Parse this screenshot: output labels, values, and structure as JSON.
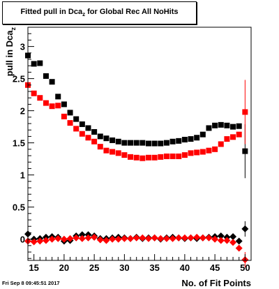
{
  "title": {
    "prefix": "Fitted pull in Dca",
    "sub": "z",
    "suffix": " for Global Rec All NoHits"
  },
  "footer": "Fri Sep  8 09:45:51 2017",
  "colors": {
    "black_series": "#000000",
    "red_series": "#ff0000"
  },
  "chart_data": {
    "type": "scatter",
    "title": "Fitted pull in Dca_z for Global Rec All NoHits",
    "xlabel": "No. of Fit Points",
    "ylabel": "pull in Dca_z",
    "xlim": [
      14,
      51
    ],
    "ylim": [
      -0.33,
      3.3
    ],
    "xticks": [
      "15",
      "20",
      "25",
      "30",
      "35",
      "40",
      "45",
      "50"
    ],
    "yticks": [
      "0",
      "0.5",
      "1",
      "1.5",
      "2",
      "2.5",
      "3"
    ],
    "grid": false,
    "legend": "none",
    "series": [
      {
        "marker": "square",
        "color": "#000000",
        "x": [
          14,
          15,
          16,
          17,
          18,
          19,
          20,
          21,
          22,
          23,
          24,
          25,
          26,
          27,
          28,
          29,
          30,
          31,
          32,
          33,
          34,
          35,
          36,
          37,
          38,
          39,
          40,
          41,
          42,
          43,
          44,
          45,
          46,
          47,
          48,
          49,
          50
        ],
        "y": [
          2.86,
          2.73,
          2.74,
          2.54,
          2.45,
          2.22,
          2.1,
          1.97,
          1.87,
          1.79,
          1.73,
          1.67,
          1.6,
          1.57,
          1.54,
          1.52,
          1.5,
          1.5,
          1.5,
          1.5,
          1.49,
          1.49,
          1.49,
          1.5,
          1.52,
          1.53,
          1.55,
          1.56,
          1.58,
          1.63,
          1.73,
          1.77,
          1.78,
          1.77,
          1.75,
          1.76,
          1.37
        ],
        "err": [
          0,
          0,
          0,
          0,
          0,
          0,
          0,
          0,
          0,
          0,
          0,
          0,
          0,
          0,
          0,
          0,
          0,
          0,
          0,
          0,
          0,
          0,
          0,
          0,
          0,
          0,
          0,
          0,
          0,
          0,
          0,
          0,
          0,
          0,
          0,
          0.04,
          0.42
        ]
      },
      {
        "marker": "square",
        "color": "#ff0000",
        "x": [
          14,
          15,
          16,
          17,
          18,
          19,
          20,
          21,
          22,
          23,
          24,
          25,
          26,
          27,
          28,
          29,
          30,
          31,
          32,
          33,
          34,
          35,
          36,
          37,
          38,
          39,
          40,
          41,
          42,
          43,
          44,
          45,
          46,
          47,
          48,
          49,
          50
        ],
        "y": [
          2.4,
          2.27,
          2.2,
          2.12,
          2.07,
          2.08,
          1.91,
          1.81,
          1.72,
          1.64,
          1.58,
          1.52,
          1.44,
          1.38,
          1.36,
          1.34,
          1.31,
          1.28,
          1.27,
          1.26,
          1.27,
          1.27,
          1.28,
          1.29,
          1.29,
          1.29,
          1.31,
          1.34,
          1.35,
          1.36,
          1.38,
          1.4,
          1.48,
          1.56,
          1.59,
          1.63,
          1.98
        ],
        "err": [
          0,
          0,
          0,
          0,
          0,
          0,
          0,
          0,
          0,
          0,
          0,
          0,
          0,
          0,
          0,
          0,
          0,
          0,
          0,
          0,
          0,
          0,
          0,
          0,
          0,
          0,
          0,
          0,
          0,
          0,
          0,
          0,
          0,
          0,
          0,
          0.04,
          0.5
        ]
      },
      {
        "marker": "diamond",
        "color": "#000000",
        "x": [
          14,
          15,
          16,
          17,
          18,
          19,
          20,
          21,
          22,
          23,
          24,
          25,
          26,
          27,
          28,
          29,
          30,
          31,
          32,
          33,
          34,
          35,
          36,
          37,
          38,
          39,
          40,
          41,
          42,
          43,
          44,
          45,
          46,
          47,
          48,
          49,
          50
        ],
        "y": [
          0.08,
          0.0,
          0.01,
          0.03,
          0.04,
          0.03,
          -0.03,
          -0.02,
          0.05,
          0.07,
          0.07,
          0.05,
          0.01,
          0.01,
          0.02,
          0.03,
          0.02,
          0.01,
          0.03,
          0.01,
          0.02,
          0.02,
          0.0,
          0.02,
          0.03,
          0.02,
          0.01,
          0.02,
          0.01,
          0.02,
          0.03,
          0.04,
          0.05,
          0.03,
          0.04,
          -0.03,
          0.16
        ],
        "err": [
          0,
          0,
          0,
          0,
          0,
          0,
          0,
          0,
          0,
          0,
          0,
          0,
          0,
          0,
          0,
          0,
          0,
          0,
          0,
          0,
          0,
          0,
          0,
          0,
          0,
          0,
          0,
          0,
          0,
          0,
          0,
          0,
          0,
          0,
          0,
          0,
          0.12
        ]
      },
      {
        "marker": "diamond",
        "color": "#ff0000",
        "x": [
          14,
          15,
          16,
          17,
          18,
          19,
          20,
          21,
          22,
          23,
          24,
          25,
          26,
          27,
          28,
          29,
          30,
          31,
          32,
          33,
          34,
          35,
          36,
          37,
          38,
          39,
          40,
          41,
          42,
          43,
          44,
          45,
          46,
          47,
          48,
          49,
          50
        ],
        "y": [
          -0.03,
          -0.04,
          -0.03,
          -0.02,
          0.0,
          0.01,
          0.0,
          0.01,
          0.02,
          0.01,
          0.02,
          0.03,
          -0.01,
          -0.02,
          0.0,
          0.0,
          0.01,
          0.01,
          0.02,
          0.02,
          0.01,
          0.02,
          0.01,
          0.01,
          0.01,
          0.02,
          0.02,
          0.02,
          0.03,
          0.02,
          0.02,
          0.0,
          -0.02,
          -0.02,
          -0.05,
          -0.14,
          -0.32
        ],
        "err": [
          0,
          0,
          0,
          0,
          0,
          0,
          0,
          0,
          0,
          0,
          0,
          0,
          0,
          0,
          0,
          0,
          0,
          0,
          0,
          0,
          0,
          0,
          0,
          0,
          0,
          0,
          0,
          0,
          0,
          0,
          0,
          0,
          0,
          0,
          0,
          0,
          0.12
        ]
      }
    ]
  }
}
